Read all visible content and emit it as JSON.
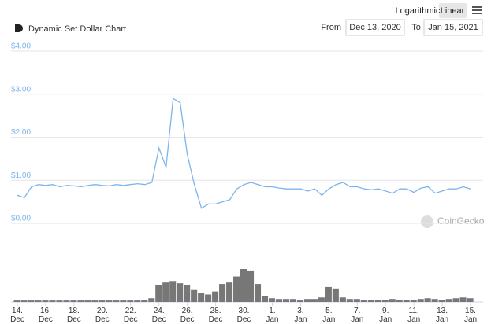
{
  "controls": {
    "scale_options": [
      "Logarithmic",
      "Linear"
    ],
    "active_scale": "Linear",
    "from_label": "From",
    "from_date": "Dec 13, 2020",
    "to_label": "To",
    "to_date": "Jan 15, 2021"
  },
  "watermark": "CoinGecko",
  "chart_data": {
    "type": "line",
    "title": "Dynamic Set Dollar Chart",
    "categories": [
      "14. Dec",
      null,
      null,
      null,
      "16. Dec",
      null,
      null,
      null,
      "18. Dec",
      null,
      null,
      null,
      "20. Dec",
      null,
      null,
      null,
      "22. Dec",
      null,
      null,
      null,
      "24. Dec",
      null,
      null,
      null,
      "26. Dec",
      null,
      null,
      null,
      "28. Dec",
      null,
      null,
      null,
      "30. Dec",
      null,
      null,
      null,
      "1. Jan",
      null,
      null,
      null,
      "3. Jan",
      null,
      null,
      null,
      "5. Jan",
      null,
      null,
      null,
      "7. Jan",
      null,
      null,
      null,
      "9. Jan",
      null,
      null,
      null,
      "11. Jan",
      null,
      null,
      null,
      "13. Jan",
      null,
      null,
      null,
      "15. Jan"
    ],
    "values": [
      0.65,
      0.6,
      0.85,
      0.9,
      0.88,
      0.9,
      0.85,
      0.88,
      0.87,
      0.85,
      0.88,
      0.9,
      0.88,
      0.87,
      0.9,
      0.88,
      0.9,
      0.92,
      0.9,
      0.95,
      1.75,
      1.3,
      2.9,
      2.8,
      1.6,
      0.9,
      0.35,
      0.45,
      0.45,
      0.5,
      0.55,
      0.8,
      0.9,
      0.95,
      0.9,
      0.85,
      0.85,
      0.82,
      0.8,
      0.8,
      0.8,
      0.75,
      0.8,
      0.65,
      0.8,
      0.9,
      0.95,
      0.85,
      0.85,
      0.8,
      0.78,
      0.8,
      0.75,
      0.7,
      0.8,
      0.8,
      0.72,
      0.82,
      0.85,
      0.7,
      0.75,
      0.8,
      0.8,
      0.85,
      0.8
    ],
    "color": "#7cb5ec",
    "volume": {
      "values": [
        2,
        2,
        2,
        2,
        2,
        2,
        2,
        2,
        2,
        2,
        2,
        2,
        2,
        2,
        2,
        2,
        2,
        2,
        3,
        5,
        22,
        26,
        28,
        25,
        22,
        16,
        12,
        10,
        14,
        24,
        26,
        34,
        44,
        42,
        24,
        8,
        5,
        4,
        4,
        4,
        3,
        4,
        4,
        6,
        20,
        18,
        6,
        4,
        4,
        3,
        3,
        3,
        3,
        4,
        3,
        3,
        3,
        4,
        5,
        4,
        3,
        4,
        5,
        6,
        5
      ],
      "color": "#777777"
    },
    "ylim": [
      0,
      4
    ],
    "yticks": [
      {
        "value": 0,
        "label": "$0.00"
      },
      {
        "value": 1,
        "label": "$1.00"
      },
      {
        "value": 2,
        "label": "$2.00"
      },
      {
        "value": 3,
        "label": "$3.00"
      },
      {
        "value": 4,
        "label": "$4.00"
      }
    ],
    "grid": true
  }
}
